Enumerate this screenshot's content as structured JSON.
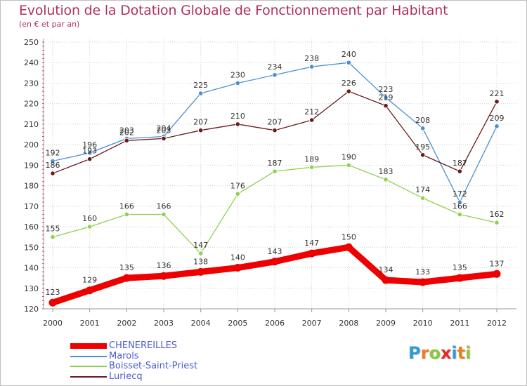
{
  "title": "Evolution de la Dotation Globale de Fonctionnement par Habitant",
  "subtitle": "(en € et par an)",
  "chart_data": {
    "type": "line",
    "title": "Evolution de la Dotation Globale de Fonctionnement par Habitant",
    "subtitle": "(en € et par an)",
    "xlabel": "",
    "ylabel": "",
    "x": [
      "2000",
      "2001",
      "2002",
      "2003",
      "2004",
      "2005",
      "2006",
      "2007",
      "2008",
      "2009",
      "2010",
      "2011",
      "2012"
    ],
    "ylim": [
      120,
      250
    ],
    "yticks": [
      "120",
      "130",
      "140",
      "150",
      "160",
      "170",
      "180",
      "190",
      "200",
      "210",
      "220",
      "230",
      "240",
      "250"
    ],
    "grid": true,
    "legend_position": "bottom-left",
    "series": [
      {
        "name": "CHENEREILLES",
        "color": "#ee0000",
        "values": [
          123,
          129,
          135,
          136,
          138,
          140,
          143,
          147,
          150,
          134,
          133,
          135,
          137
        ]
      },
      {
        "name": "Marols",
        "color": "#4a8fcf",
        "values": [
          192,
          196,
          203,
          204,
          225,
          230,
          234,
          238,
          240,
          223,
          208,
          172,
          209
        ]
      },
      {
        "name": "Boisset-Saint-Priest",
        "color": "#8fd14f",
        "values": [
          155,
          160,
          166,
          166,
          147,
          176,
          187,
          189,
          190,
          183,
          174,
          166,
          162
        ]
      },
      {
        "name": "Luriecq",
        "color": "#6b1a1a",
        "values": [
          186,
          193,
          202,
          203,
          207,
          210,
          207,
          212,
          226,
          219,
          195,
          187,
          221
        ]
      }
    ]
  },
  "legend": {
    "items": [
      "CHENEREILLES",
      "Marols",
      "Boisset-Saint-Priest",
      "Luriecq"
    ]
  },
  "logo": {
    "letters": [
      "P",
      "r",
      "o",
      "x",
      "i",
      "t",
      "i"
    ],
    "colors": [
      "#2e9bd6",
      "#f07d1a",
      "#8dc63f",
      "#e8262a",
      "#2e9bd6",
      "#f07d1a",
      "#8dc63f"
    ]
  }
}
